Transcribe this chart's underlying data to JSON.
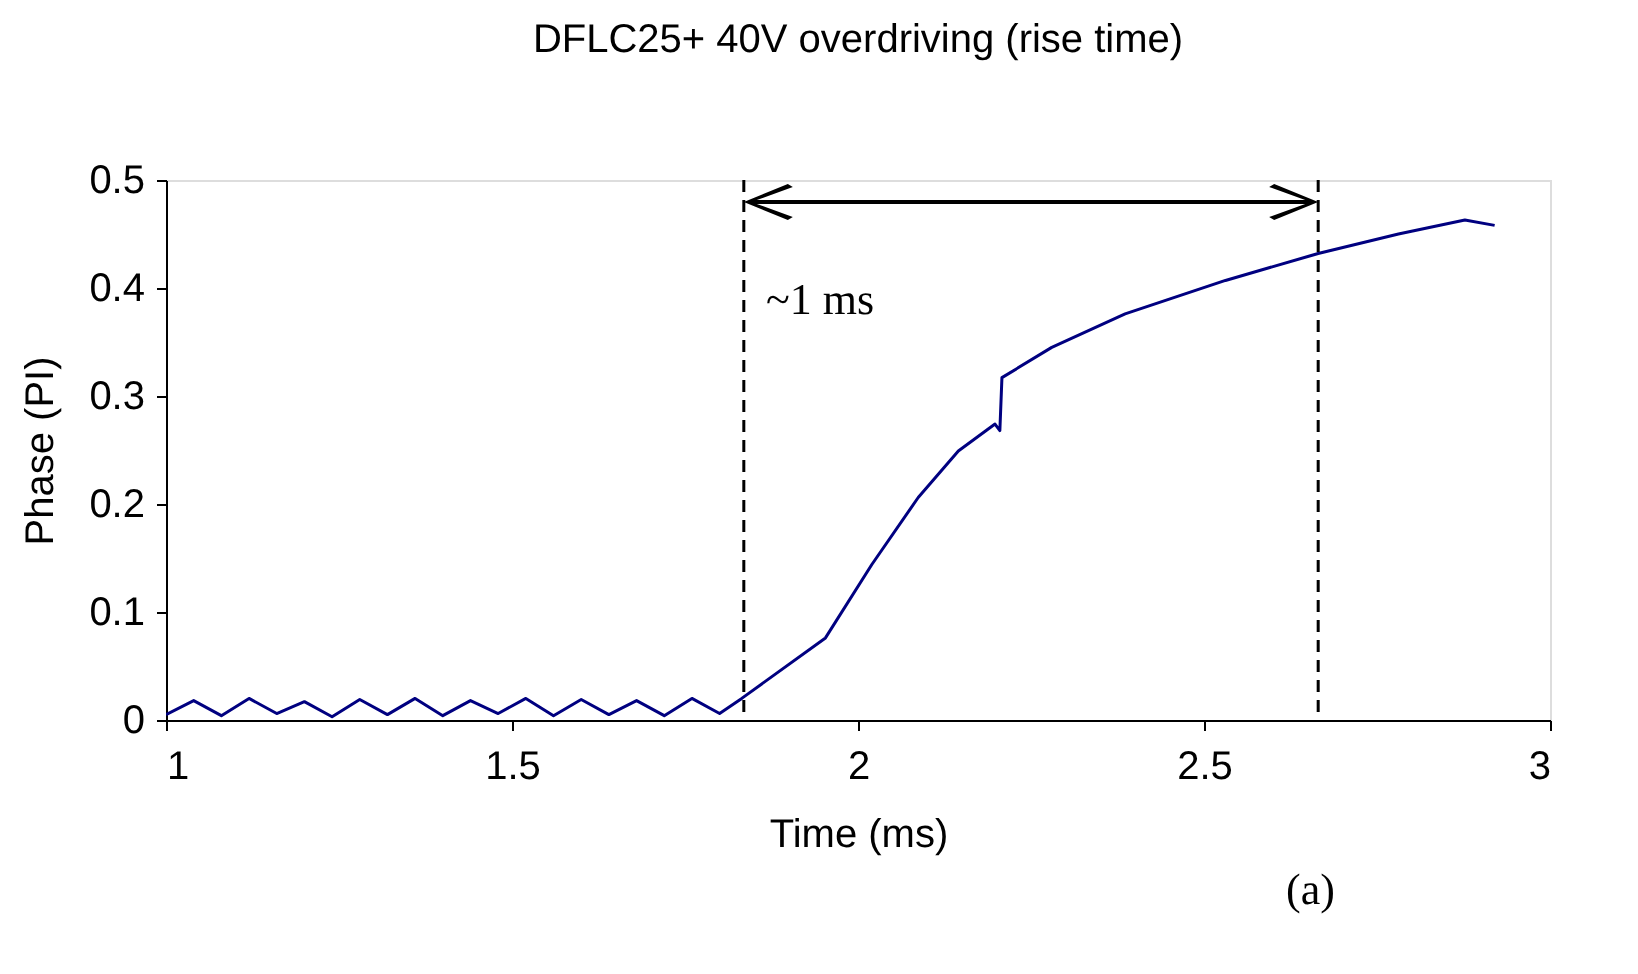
{
  "chart_data": {
    "type": "line",
    "title": "DFLC25+ 40V overdriving (rise time)",
    "xlabel": "Time (ms)",
    "ylabel": "Phase (PI)",
    "xlim": [
      1,
      3
    ],
    "xticks": [
      1,
      1.5,
      2,
      2.5,
      3
    ],
    "ylim": [
      0,
      0.5
    ],
    "yticks": [
      0,
      0.1,
      0.2,
      0.3,
      0.4,
      0.5
    ],
    "grid": false,
    "marker": "none",
    "line_style": "solid",
    "series": [
      {
        "color": "#000080",
        "x": [
          1.0,
          1.04,
          1.08,
          1.12,
          1.16,
          1.2,
          1.24,
          1.28,
          1.32,
          1.36,
          1.4,
          1.44,
          1.48,
          1.52,
          1.56,
          1.6,
          1.64,
          1.68,
          1.72,
          1.76,
          1.8,
          1.832,
          1.953,
          2.02,
          2.087,
          2.145,
          2.198,
          2.205,
          2.208,
          2.28,
          2.386,
          2.531,
          2.665,
          2.781,
          2.877,
          2.92
        ],
        "values": [
          0.005,
          0.018,
          0.004,
          0.02,
          0.006,
          0.017,
          0.003,
          0.019,
          0.005,
          0.02,
          0.004,
          0.018,
          0.006,
          0.02,
          0.004,
          0.019,
          0.005,
          0.018,
          0.004,
          0.02,
          0.006,
          0.02,
          0.076,
          0.144,
          0.206,
          0.249,
          0.274,
          0.268,
          0.317,
          0.345,
          0.376,
          0.407,
          0.432,
          0.45,
          0.463,
          0.458
        ]
      }
    ],
    "ref_lines": [
      {
        "axis": "x",
        "value": 1.835,
        "color": "#000000",
        "line_style": "dashed"
      },
      {
        "axis": "x",
        "value": 2.665,
        "color": "#000000",
        "line_style": "dashed"
      }
    ],
    "annotations": [
      "~1 ms",
      "(a)"
    ]
  }
}
